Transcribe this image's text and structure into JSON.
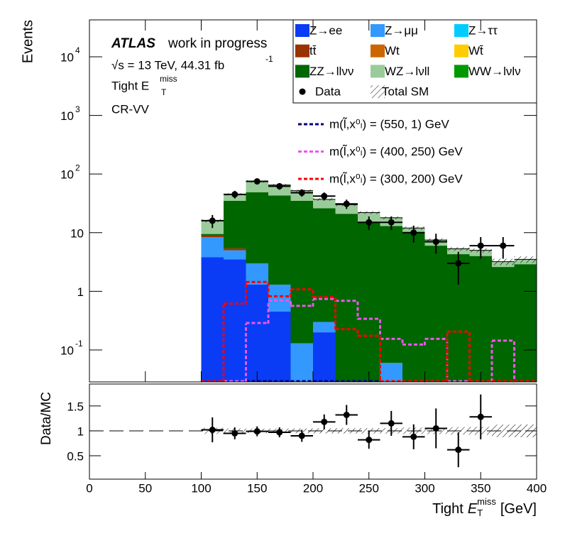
{
  "chart_data": {
    "type": "stacked_histogram",
    "log_y": true,
    "ylabel": "Events",
    "xlabel": {
      "prefix": "Tight",
      "symbol": "E",
      "sub": "T",
      "sup": "miss",
      "unit": "[GeV]"
    },
    "annotation": {
      "experiment": "ATLAS",
      "status": "work in progress",
      "energy": "√s = 13 TeV, 44.31 fb",
      "energy_sup": "-1",
      "selection": "Tight E",
      "selection_sup": "miss",
      "selection_sub": "T",
      "region": "CR-VV"
    },
    "xlim": [
      0,
      400
    ],
    "xticks": [
      0,
      50,
      100,
      150,
      200,
      250,
      300,
      350,
      400
    ],
    "ylim": [
      0.0285,
      42600
    ],
    "yticks": [
      {
        "value": 0.1,
        "label": "10",
        "exponent": "-1"
      },
      1,
      10,
      {
        "value": 100,
        "label": "10",
        "exponent": "2"
      },
      {
        "value": 1000,
        "label": "10",
        "exponent": "3"
      },
      {
        "value": 10000,
        "label": "10",
        "exponent": "4"
      }
    ],
    "bins": [
      100,
      120,
      140,
      160,
      180,
      200,
      220,
      240,
      260,
      280,
      300,
      320,
      340,
      360,
      380,
      400
    ],
    "series": [
      {
        "name": "Z→ee",
        "color": "#0a3cf5",
        "values": [
          3.8,
          3.5,
          1.3,
          0.45,
          0,
          0.2,
          0,
          0,
          0,
          0,
          0,
          0,
          0,
          0,
          0
        ]
      },
      {
        "name": "Z→μμ",
        "color": "#3399ff",
        "values": [
          4.6,
          1.5,
          1.7,
          0.85,
          0.13,
          0.1,
          0,
          0,
          0.06,
          0,
          0,
          0,
          0,
          0,
          0
        ]
      },
      {
        "name": "Z→ττ",
        "color": "#00ccff",
        "values": [
          0,
          0,
          0,
          0,
          0,
          0,
          0,
          0,
          0,
          0,
          0,
          0,
          0,
          0,
          0
        ]
      },
      {
        "name": "tt̄",
        "color": "#993300",
        "values": [
          0.6,
          0.4,
          0,
          0,
          0,
          0,
          0,
          0,
          0,
          0,
          0,
          0,
          0,
          0,
          0
        ]
      },
      {
        "name": "Wt",
        "color": "#cc6600",
        "values": [
          0,
          0,
          0,
          0,
          0,
          0,
          0,
          0,
          0,
          0,
          0,
          0,
          0,
          0,
          0
        ]
      },
      {
        "name": "Wt̄",
        "color": "#ffcc00",
        "values": [
          0,
          0,
          0,
          0,
          0,
          0,
          0,
          0,
          0,
          0,
          0,
          0,
          0,
          0,
          0
        ]
      },
      {
        "name": "ZZ→llνν",
        "color": "#006600",
        "values": [
          0.5,
          29.6,
          46,
          41.7,
          34.9,
          25.7,
          21,
          15,
          12.9,
          10,
          6,
          4.3,
          4,
          2.6,
          2.9
        ]
      },
      {
        "name": "WZ→lνll",
        "color": "#99cc99",
        "values": [
          6.5,
          10,
          26,
          22,
          17,
          11,
          9,
          7,
          5,
          2,
          1.5,
          1,
          1,
          0.6,
          0.6
        ]
      },
      {
        "name": "WW→lνlν",
        "color": "#009900",
        "values": [
          0,
          0,
          0,
          0,
          0,
          0,
          0,
          0,
          0,
          0,
          0,
          0,
          0,
          0,
          0
        ]
      }
    ],
    "total_sm": {
      "name": "Total SM",
      "errors": [
        1.0,
        2.2,
        3.5,
        3.0,
        2.5,
        1.9,
        1.6,
        1.2,
        1.0,
        0.8,
        0.5,
        0.4,
        0.4,
        0.4,
        0.45
      ]
    },
    "data": {
      "name": "Data",
      "values": [
        16,
        45,
        75,
        62,
        48,
        42,
        31,
        15,
        15,
        10,
        7,
        3,
        6,
        6,
        null
      ],
      "errors": [
        4,
        6.7,
        8.7,
        7.9,
        6.9,
        6.5,
        5.6,
        3.9,
        3.9,
        3.2,
        2.6,
        1.7,
        2.4,
        2.4,
        null
      ]
    },
    "signals": [
      {
        "name": "m(l̃,x⁰ₗ) = (550, 1) GeV",
        "color": "#000080",
        "values": [
          0,
          0,
          0,
          0,
          0,
          0,
          0,
          0,
          0,
          0,
          0,
          0,
          0,
          0,
          0
        ]
      },
      {
        "name": "m(l̃,x⁰ₗ) = (400, 250) GeV",
        "color": "#ee55ee",
        "values": [
          0,
          0,
          0.28,
          0.68,
          0.55,
          0.72,
          0.67,
          0.33,
          0.15,
          0.12,
          0.15,
          0,
          0,
          0.14,
          0
        ]
      },
      {
        "name": "m(l̃,x⁰ₗ) = (300, 200) GeV",
        "color": "#ff0000",
        "values": [
          0,
          0.6,
          1.4,
          0.8,
          1.05,
          0.78,
          0.22,
          0.17,
          0,
          0,
          0,
          0.2,
          0,
          0,
          0
        ]
      }
    ],
    "ratio": {
      "ylabel": "Data/MC",
      "ylim": [
        0.03,
        1.94
      ],
      "yticks": [
        0.5,
        1,
        1.5
      ],
      "values": [
        1.02,
        0.95,
        0.99,
        0.97,
        0.9,
        1.18,
        1.32,
        0.82,
        1.15,
        0.88,
        1.05,
        0.62,
        1.28,
        null,
        null
      ],
      "errors": [
        0.25,
        0.12,
        0.1,
        0.1,
        0.12,
        0.15,
        0.2,
        0.18,
        0.25,
        0.25,
        0.4,
        0.35,
        0.45,
        null,
        null
      ]
    }
  }
}
